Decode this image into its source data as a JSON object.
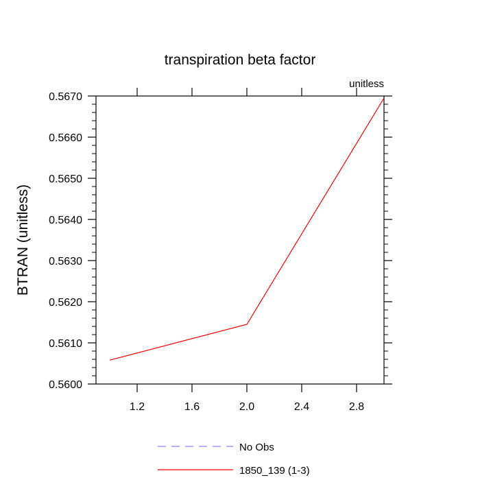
{
  "chart_data": {
    "type": "line",
    "title": "transpiration beta factor",
    "units_label": "unitless",
    "xlabel": "",
    "ylabel": "BTRAN  (unitless)",
    "xlim": [
      0.9,
      3.0
    ],
    "ylim": [
      0.56,
      0.567
    ],
    "x_ticks": [
      1.2,
      1.6,
      2.0,
      2.4,
      2.8
    ],
    "x_tick_labels": [
      "1.2",
      "1.6",
      "2.0",
      "2.4",
      "2.8"
    ],
    "y_ticks": [
      0.56,
      0.561,
      0.562,
      0.563,
      0.564,
      0.565,
      0.566,
      0.567
    ],
    "y_tick_labels": [
      "0.5600",
      "0.5610",
      "0.5620",
      "0.5630",
      "0.5640",
      "0.5650",
      "0.5660",
      "0.5670"
    ],
    "grid": false,
    "legend_position": "bottom",
    "series": [
      {
        "name": "No Obs",
        "color": "#8080ff",
        "style": "dashed",
        "x": [],
        "y": []
      },
      {
        "name": "1850_139 (1-3)",
        "color": "#ff0000",
        "style": "solid",
        "x": [
          1.0,
          2.0,
          3.0
        ],
        "y": [
          0.56058,
          0.56145,
          0.56695
        ]
      }
    ]
  }
}
